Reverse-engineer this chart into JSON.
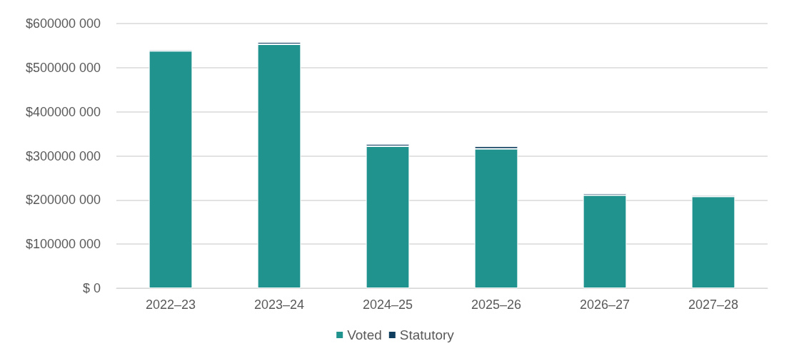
{
  "chart_data": {
    "type": "bar",
    "stacked": true,
    "categories": [
      "2022–23",
      "2023–24",
      "2024–25",
      "2025–26",
      "2026–27",
      "2027–28"
    ],
    "series": [
      {
        "name": "Voted",
        "color": "#20938f",
        "values": [
          538000000,
          553000000,
          322000000,
          316000000,
          211000000,
          208000000
        ]
      },
      {
        "name": "Statutory",
        "color": "#0e3d5e",
        "values": [
          3000000,
          5000000,
          5000000,
          6000000,
          4000000,
          3000000
        ]
      }
    ],
    "ylim": [
      0,
      600000000
    ],
    "yticks": [
      {
        "value": 0,
        "label": "$ 0"
      },
      {
        "value": 100000000,
        "label": "$100000 000"
      },
      {
        "value": 200000000,
        "label": "$200000 000"
      },
      {
        "value": 300000000,
        "label": "$300000 000"
      },
      {
        "value": 400000000,
        "label": "$400000 000"
      },
      {
        "value": 500000000,
        "label": "$500000 000"
      },
      {
        "value": 600000000,
        "label": "$600000 000"
      }
    ],
    "grid": "y",
    "legend": "bottom"
  }
}
